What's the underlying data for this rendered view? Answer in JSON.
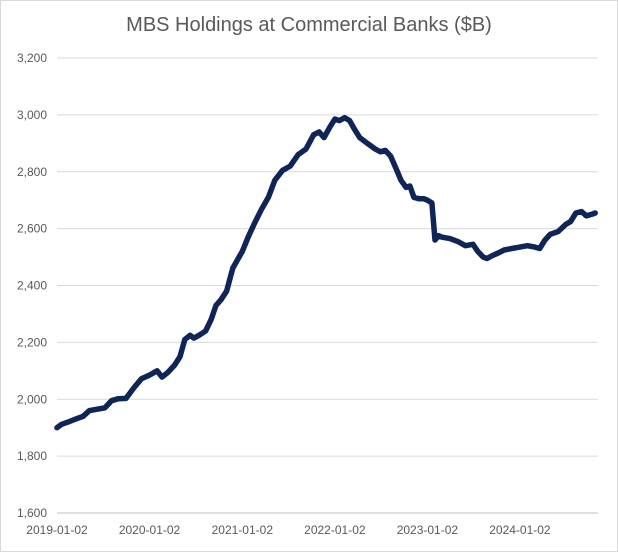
{
  "chart_data": {
    "type": "line",
    "title": "MBS Holdings at Commercial Banks ($B)",
    "xlabel": "",
    "ylabel": "",
    "ylim": [
      1600,
      3200
    ],
    "y_ticks": [
      "1,600",
      "1,800",
      "2,000",
      "2,200",
      "2,400",
      "2,600",
      "2,800",
      "3,000",
      "3,200"
    ],
    "x_ticks": [
      "2019-01-02",
      "2020-01-02",
      "2021-01-02",
      "2022-01-02",
      "2023-01-02",
      "2024-01-02"
    ],
    "grid": "horizontal",
    "colors": {
      "line": "#0f2457",
      "grid": "#d9d9d9",
      "text": "#595959"
    },
    "series": [
      {
        "values": [
          [
            "2019-01-02",
            1900
          ],
          [
            "2019-01-20",
            1912
          ],
          [
            "2019-02-15",
            1920
          ],
          [
            "2019-03-15",
            1930
          ],
          [
            "2019-04-15",
            1940
          ],
          [
            "2019-05-10",
            1960
          ],
          [
            "2019-06-10",
            1965
          ],
          [
            "2019-07-10",
            1970
          ],
          [
            "2019-08-05",
            1995
          ],
          [
            "2019-09-01",
            2002
          ],
          [
            "2019-10-01",
            2003
          ],
          [
            "2019-11-01",
            2040
          ],
          [
            "2019-12-01",
            2072
          ],
          [
            "2020-01-02",
            2085
          ],
          [
            "2020-02-01",
            2100
          ],
          [
            "2020-02-20",
            2078
          ],
          [
            "2020-03-15",
            2095
          ],
          [
            "2020-04-10",
            2120
          ],
          [
            "2020-05-01",
            2150
          ],
          [
            "2020-05-20",
            2210
          ],
          [
            "2020-06-10",
            2225
          ],
          [
            "2020-06-25",
            2215
          ],
          [
            "2020-07-15",
            2225
          ],
          [
            "2020-08-10",
            2240
          ],
          [
            "2020-09-01",
            2280
          ],
          [
            "2020-09-20",
            2330
          ],
          [
            "2020-10-10",
            2350
          ],
          [
            "2020-11-01",
            2380
          ],
          [
            "2020-11-25",
            2460
          ],
          [
            "2020-12-20",
            2500
          ],
          [
            "2021-01-02",
            2520
          ],
          [
            "2021-01-25",
            2570
          ],
          [
            "2021-02-20",
            2620
          ],
          [
            "2021-03-20",
            2670
          ],
          [
            "2021-04-15",
            2710
          ],
          [
            "2021-05-10",
            2770
          ],
          [
            "2021-06-10",
            2805
          ],
          [
            "2021-07-10",
            2820
          ],
          [
            "2021-08-10",
            2860
          ],
          [
            "2021-09-10",
            2880
          ],
          [
            "2021-10-10",
            2930
          ],
          [
            "2021-11-01",
            2940
          ],
          [
            "2021-11-20",
            2920
          ],
          [
            "2021-12-15",
            2960
          ],
          [
            "2022-01-02",
            2985
          ],
          [
            "2022-01-20",
            2980
          ],
          [
            "2022-02-10",
            2990
          ],
          [
            "2022-03-01",
            2980
          ],
          [
            "2022-03-20",
            2950
          ],
          [
            "2022-04-10",
            2920
          ],
          [
            "2022-05-10",
            2900
          ],
          [
            "2022-06-10",
            2880
          ],
          [
            "2022-07-01",
            2870
          ],
          [
            "2022-07-20",
            2875
          ],
          [
            "2022-08-10",
            2855
          ],
          [
            "2022-09-01",
            2810
          ],
          [
            "2022-09-20",
            2770
          ],
          [
            "2022-10-10",
            2745
          ],
          [
            "2022-10-25",
            2750
          ],
          [
            "2022-11-10",
            2710
          ],
          [
            "2022-12-01",
            2705
          ],
          [
            "2022-12-20",
            2705
          ],
          [
            "2023-01-02",
            2700
          ],
          [
            "2023-01-20",
            2690
          ],
          [
            "2023-02-01",
            2560
          ],
          [
            "2023-02-15",
            2575
          ],
          [
            "2023-03-01",
            2570
          ],
          [
            "2023-04-01",
            2565
          ],
          [
            "2023-05-01",
            2555
          ],
          [
            "2023-06-01",
            2540
          ],
          [
            "2023-07-01",
            2545
          ],
          [
            "2023-07-20",
            2520
          ],
          [
            "2023-08-10",
            2500
          ],
          [
            "2023-08-25",
            2495
          ],
          [
            "2023-09-15",
            2505
          ],
          [
            "2023-10-10",
            2515
          ],
          [
            "2023-11-01",
            2525
          ],
          [
            "2023-12-01",
            2530
          ],
          [
            "2024-01-02",
            2535
          ],
          [
            "2024-02-01",
            2540
          ],
          [
            "2024-03-01",
            2535
          ],
          [
            "2024-03-20",
            2530
          ],
          [
            "2024-04-10",
            2560
          ],
          [
            "2024-05-01",
            2580
          ],
          [
            "2024-06-01",
            2590
          ],
          [
            "2024-07-01",
            2615
          ],
          [
            "2024-07-20",
            2625
          ],
          [
            "2024-08-10",
            2655
          ],
          [
            "2024-09-01",
            2660
          ],
          [
            "2024-09-20",
            2645
          ],
          [
            "2024-10-10",
            2650
          ],
          [
            "2024-10-25",
            2655
          ]
        ]
      }
    ]
  }
}
